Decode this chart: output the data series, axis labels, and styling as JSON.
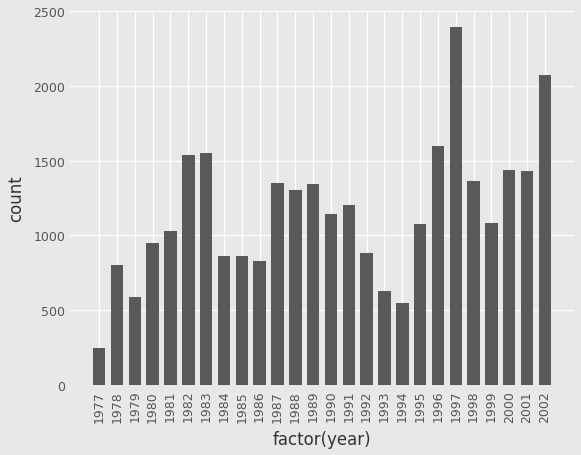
{
  "years": [
    "1977",
    "1978",
    "1979",
    "1980",
    "1981",
    "1982",
    "1983",
    "1984",
    "1985",
    "1986",
    "1987",
    "1988",
    "1989",
    "1990",
    "1991",
    "1992",
    "1993",
    "1994",
    "1995",
    "1996",
    "1997",
    "1998",
    "1999",
    "2000",
    "2001",
    "2002"
  ],
  "counts": [
    250,
    800,
    590,
    950,
    1030,
    1540,
    1550,
    860,
    860,
    830,
    1350,
    1305,
    1345,
    1145,
    1200,
    880,
    630,
    550,
    1075,
    1600,
    2390,
    1365,
    1085,
    1435,
    1430,
    2070
  ],
  "bar_color": "#595959",
  "plot_bg_color": "#e8e8e8",
  "fig_bg_color": "#e8e8e8",
  "grid_color": "#ffffff",
  "xlabel": "factor(year)",
  "ylabel": "count",
  "ylim": [
    0,
    2500
  ],
  "yticks": [
    0,
    500,
    1000,
    1500,
    2000,
    2500
  ],
  "xlabel_fontsize": 12,
  "ylabel_fontsize": 12,
  "tick_fontsize": 9
}
